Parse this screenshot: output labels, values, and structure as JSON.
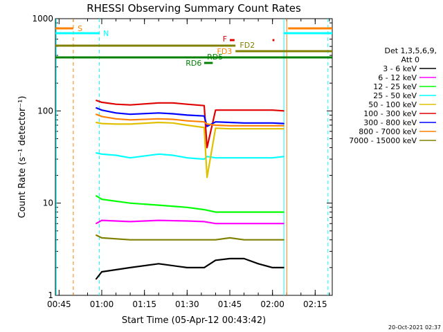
{
  "chart_data": {
    "type": "line",
    "title": "RHESSI Observing Summary Count Rates",
    "xlabel": "Start Time (05-Apr-12 00:43:42)",
    "ylabel": "Count Rate (s⁻¹ detector⁻¹)",
    "y_scale": "log",
    "ylim": [
      1,
      1000
    ],
    "xlim": [
      "00:43:42",
      "02:21:00"
    ],
    "x_ticks": [
      "00:45",
      "01:00",
      "01:15",
      "01:30",
      "01:45",
      "02:00",
      "02:15"
    ],
    "y_ticks": [
      "1",
      "10",
      "100",
      "1000"
    ],
    "timestamp": "20-Oct-2021 02:37",
    "legend": {
      "header1": "Det 1,3,5,6,9,",
      "header2": "Att 0",
      "placement": "right"
    },
    "series": [
      {
        "name": "3 - 6 keV",
        "color": "#000000",
        "x": [
          "00:58",
          "01:00",
          "01:10",
          "01:20",
          "01:30",
          "01:36",
          "01:40",
          "01:45",
          "01:50",
          "01:55",
          "02:00",
          "02:04"
        ],
        "values": [
          1.5,
          1.8,
          2,
          2.2,
          2,
          2,
          2.4,
          2.5,
          2.5,
          2.2,
          2,
          2
        ]
      },
      {
        "name": "6 - 12 keV",
        "color": "#ff00ff",
        "x": [
          "00:58",
          "01:00",
          "01:10",
          "01:20",
          "01:30",
          "01:36",
          "01:40",
          "01:45",
          "01:50",
          "01:55",
          "02:00",
          "02:04"
        ],
        "values": [
          6,
          6.5,
          6.3,
          6.5,
          6.4,
          6.3,
          6,
          6,
          6,
          6,
          6,
          6
        ]
      },
      {
        "name": "12 - 25 keV",
        "color": "#00ff00",
        "x": [
          "00:58",
          "01:00",
          "01:10",
          "01:20",
          "01:30",
          "01:36",
          "01:40",
          "01:45",
          "01:50",
          "01:55",
          "02:00",
          "02:04"
        ],
        "values": [
          12,
          11,
          10,
          9.5,
          9,
          8.5,
          8,
          8,
          8,
          8,
          8,
          8
        ]
      },
      {
        "name": "25 - 50 keV",
        "color": "#00ffff",
        "x": [
          "00:58",
          "01:00",
          "01:05",
          "01:10",
          "01:20",
          "01:25",
          "01:30",
          "01:36",
          "01:37",
          "01:40",
          "01:45",
          "01:50",
          "01:55",
          "02:00",
          "02:04"
        ],
        "values": [
          35,
          34,
          33,
          31,
          34,
          33,
          31,
          30,
          32,
          31,
          31,
          31,
          31,
          31,
          32
        ]
      },
      {
        "name": "50 - 100 keV",
        "color": "#e0c000",
        "x": [
          "00:58",
          "01:00",
          "01:05",
          "01:10",
          "01:20",
          "01:25",
          "01:30",
          "01:36",
          "01:37",
          "01:40",
          "01:45",
          "01:50",
          "01:55",
          "02:00",
          "02:04"
        ],
        "values": [
          75,
          73,
          72,
          72,
          75,
          74,
          70,
          66,
          19,
          65,
          64,
          64,
          64,
          64,
          64
        ]
      },
      {
        "name": "100 - 300 keV",
        "color": "#e00000",
        "x": [
          "00:58",
          "01:00",
          "01:05",
          "01:10",
          "01:20",
          "01:25",
          "01:30",
          "01:36",
          "01:37",
          "01:40",
          "01:45",
          "01:50",
          "01:55",
          "02:00",
          "02:04"
        ],
        "values": [
          130,
          124,
          118,
          116,
          122,
          122,
          118,
          114,
          40,
          102,
          102,
          102,
          102,
          102,
          100
        ]
      },
      {
        "name": "300 - 800 keV",
        "color": "#0000ff",
        "x": [
          "00:58",
          "01:00",
          "01:05",
          "01:10",
          "01:20",
          "01:25",
          "01:30",
          "01:36",
          "01:37",
          "01:40",
          "01:45",
          "01:50",
          "01:55",
          "02:00",
          "02:04"
        ],
        "values": [
          108,
          102,
          95,
          92,
          95,
          93,
          90,
          88,
          68,
          76,
          75,
          74,
          74,
          74,
          73
        ]
      },
      {
        "name": "800 - 7000 keV",
        "color": "#ff8000",
        "x": [
          "00:58",
          "01:00",
          "01:05",
          "01:10",
          "01:20",
          "01:25",
          "01:30",
          "01:36",
          "01:37",
          "01:40",
          "01:45",
          "01:50",
          "01:55",
          "02:00",
          "02:04"
        ],
        "values": [
          92,
          87,
          82,
          80,
          82,
          81,
          78,
          76,
          72,
          70,
          69,
          69,
          69,
          69,
          69
        ]
      },
      {
        "name": "7000 - 15000 keV",
        "color": "#808000",
        "x": [
          "00:58",
          "01:00",
          "01:10",
          "01:20",
          "01:30",
          "01:36",
          "01:40",
          "01:45",
          "01:50",
          "01:55",
          "02:00",
          "02:04"
        ],
        "values": [
          4.5,
          4.2,
          4,
          4,
          4,
          4,
          4,
          4.2,
          4,
          4,
          4,
          4
        ]
      }
    ],
    "annotations": [
      {
        "label": "S",
        "color": "#ff8000"
      },
      {
        "label": "N",
        "color": "#00ffff"
      },
      {
        "label": "F",
        "color": "#e00000"
      },
      {
        "label": "FD2",
        "color": "#808000"
      },
      {
        "label": "FD3",
        "color": "#ff8000"
      },
      {
        "label": "RD5",
        "color": "#008000"
      },
      {
        "label": "RD6",
        "color": "#008000"
      }
    ]
  }
}
